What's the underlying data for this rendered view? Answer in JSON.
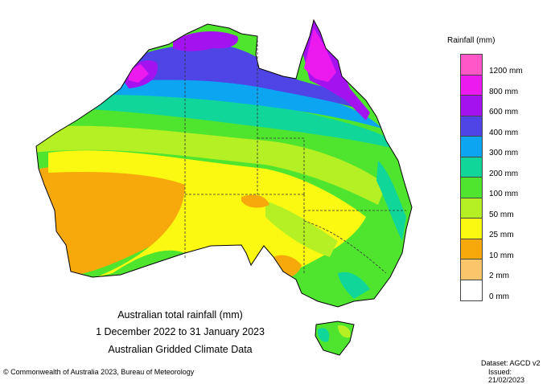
{
  "title": "Australian total rainfall (mm)",
  "period": "1 December 2022 to 31 January 2023",
  "source_line": "Australian Gridded Climate Data",
  "legend": {
    "title": "Rainfall (mm)",
    "classes": [
      {
        "label": "1200 mm",
        "color": "#ff57c8"
      },
      {
        "label": "800 mm",
        "color": "#ec1aee"
      },
      {
        "label": "600 mm",
        "color": "#a413ef"
      },
      {
        "label": "400 mm",
        "color": "#4f45e6"
      },
      {
        "label": "300 mm",
        "color": "#0ca5f2"
      },
      {
        "label": "200 mm",
        "color": "#11d69a"
      },
      {
        "label": "100 mm",
        "color": "#4fe52f"
      },
      {
        "label": "50 mm",
        "color": "#b4f023"
      },
      {
        "label": "25 mm",
        "color": "#fbf811"
      },
      {
        "label": "10 mm",
        "color": "#f7a90c"
      },
      {
        "label": "2 mm",
        "color": "#fbc66b"
      },
      {
        "label": "0 mm",
        "color": "#ffffff"
      }
    ]
  },
  "footer": {
    "copyright": "© Commonwealth of Australia 2023, Bureau of Meteorology",
    "dataset": "Dataset: AGCD v2",
    "issued": "Issued: 21/02/2023"
  }
}
